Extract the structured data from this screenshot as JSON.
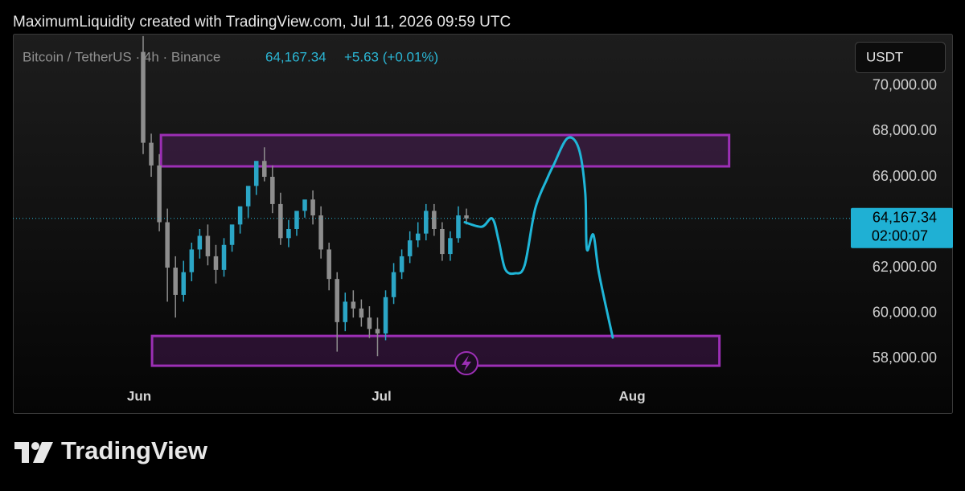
{
  "chart_data": {
    "type": "candlestick",
    "caption": "MaximumLiquidity created with TradingView.com, Jul 11, 2026 09:59 UTC",
    "symbol": "Bitcoin / TetherUS · 4h · Binance",
    "last_price": {
      "value": 64167.34,
      "label": "64,167.34"
    },
    "change": "+5.63 (+0.01%)",
    "countdown": "02:00:07",
    "currency": "USDT",
    "up_color": "#2ba6c6",
    "down_color": "#8e8e8e",
    "xlim": [
      -15.62,
      87.46
    ],
    "xticks": [
      {
        "value": 0,
        "label": "Jun"
      },
      {
        "value": 30,
        "label": "Jul"
      },
      {
        "value": 61,
        "label": "Aug"
      }
    ],
    "ylim": [
      55560,
      72300
    ],
    "yticks": [
      {
        "value": 58000,
        "label": "58,000.00"
      },
      {
        "value": 60000,
        "label": "60,000.00"
      },
      {
        "value": 62000,
        "label": "62,000.00"
      },
      {
        "value": 66000,
        "label": "66,000.00"
      },
      {
        "value": 68000,
        "label": "68,000.00"
      },
      {
        "value": 70000,
        "label": "70,000.00"
      }
    ],
    "candles": {
      "x": [
        0.5,
        1.5,
        2.5,
        3.5,
        4.5,
        5.5,
        6.5,
        7.5,
        8.5,
        9.5,
        10.5,
        11.5,
        12.5,
        13.5,
        14.5,
        15.5,
        16.5,
        17.5,
        18.5,
        19.5,
        20.5,
        21.5,
        22.5,
        23.5,
        24.5,
        25.5,
        26.5,
        27.5,
        28.5,
        29.5,
        30.5,
        31.5,
        32.5,
        33.5,
        34.5,
        35.5,
        36.5,
        37.5,
        38.5,
        39.5,
        40.5
      ],
      "open": [
        71500,
        67500,
        66500,
        64000,
        62000,
        60800,
        61800,
        62800,
        63400,
        62500,
        61900,
        63000,
        63900,
        64700,
        65600,
        66700,
        66000,
        64800,
        63300,
        63700,
        64500,
        65000,
        64300,
        62800,
        61500,
        59600,
        60500,
        60200,
        59800,
        59300,
        59100,
        60700,
        61800,
        62500,
        63200,
        63500,
        64500,
        63700,
        62600,
        63300,
        64300
      ],
      "high": [
        72200,
        67900,
        67000,
        64600,
        62500,
        62300,
        63100,
        63700,
        63900,
        63000,
        63300,
        63500,
        64300,
        65100,
        66000,
        67300,
        66500,
        65300,
        64100,
        64200,
        64900,
        65400,
        64700,
        63100,
        61800,
        60900,
        61000,
        60600,
        60300,
        59800,
        61000,
        62200,
        62800,
        63600,
        64000,
        64800,
        64800,
        64000,
        63600,
        64700,
        64600
      ],
      "low": [
        67000,
        66000,
        63600,
        60500,
        59800,
        60500,
        61400,
        62400,
        62100,
        61300,
        61600,
        62700,
        63500,
        64200,
        65200,
        65800,
        64400,
        63000,
        62900,
        63400,
        64200,
        63900,
        62400,
        61000,
        58300,
        59200,
        59800,
        59400,
        58900,
        58100,
        58800,
        60400,
        61500,
        62200,
        62900,
        63200,
        63400,
        62300,
        62300,
        63100,
        63900
      ],
      "close": [
        67500,
        66500,
        64000,
        62000,
        60800,
        61800,
        62800,
        63400,
        62500,
        61900,
        63000,
        63900,
        64700,
        65600,
        66700,
        66000,
        64800,
        63300,
        63700,
        64500,
        65000,
        64300,
        62800,
        61500,
        59600,
        60500,
        60200,
        59800,
        59300,
        59100,
        60700,
        61800,
        62500,
        63200,
        63500,
        64500,
        63700,
        62600,
        63300,
        64300,
        64167.34
      ]
    },
    "zones": [
      {
        "color": "#9c2fb5",
        "x": [
          2.7,
          73.0
        ],
        "y": [
          66460,
          67840
        ]
      },
      {
        "color": "#9c2fb5",
        "x": [
          1.6,
          71.8
        ],
        "y": [
          57680,
          58990
        ]
      }
    ],
    "projection": {
      "color": "#1fb6d8",
      "x": [
        40.3,
        42.4,
        43.7,
        44.5,
        45.3,
        46.5,
        47.7,
        49.0,
        50.5,
        51.3,
        53.0,
        54.4,
        55.2,
        55.4,
        56.2,
        56.9,
        58.6
      ],
      "y": [
        64000,
        63800,
        64160,
        63170,
        61930,
        61750,
        62100,
        64580,
        65930,
        66530,
        67700,
        67240,
        65290,
        62810,
        63450,
        61750,
        58920
      ]
    }
  },
  "footer": {
    "brand": "TradingView"
  }
}
